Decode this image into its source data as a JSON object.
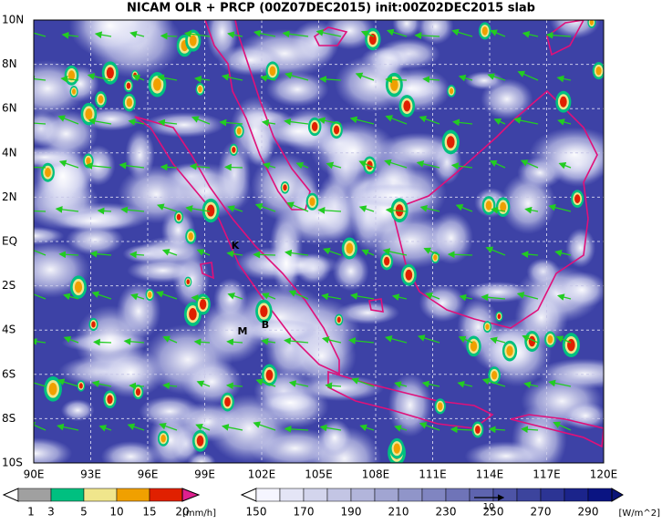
{
  "title": "NICAM OLR + PRCP (00Z07DEC2015) init:00Z02DEC2015 slab",
  "lat_labels": [
    "10N",
    "8N",
    "6N",
    "4N",
    "2N",
    "EQ",
    "2S",
    "4S",
    "6S",
    "8S",
    "10S"
  ],
  "lon_labels": [
    "90E",
    "93E",
    "96E",
    "99E",
    "102E",
    "105E",
    "108E",
    "111E",
    "114E",
    "117E",
    "120E"
  ],
  "place_labels": [
    "K",
    "M",
    "B"
  ],
  "precip_scale": {
    "labels": [
      "1",
      "3",
      "5",
      "10",
      "15",
      "20"
    ],
    "unit": "[mm/h]"
  },
  "olr_scale": {
    "labels": [
      "150",
      "170",
      "190",
      "210",
      "230",
      "250",
      "270",
      "290"
    ],
    "unit": "[W/m^2]"
  },
  "vector_ref": "10"
}
